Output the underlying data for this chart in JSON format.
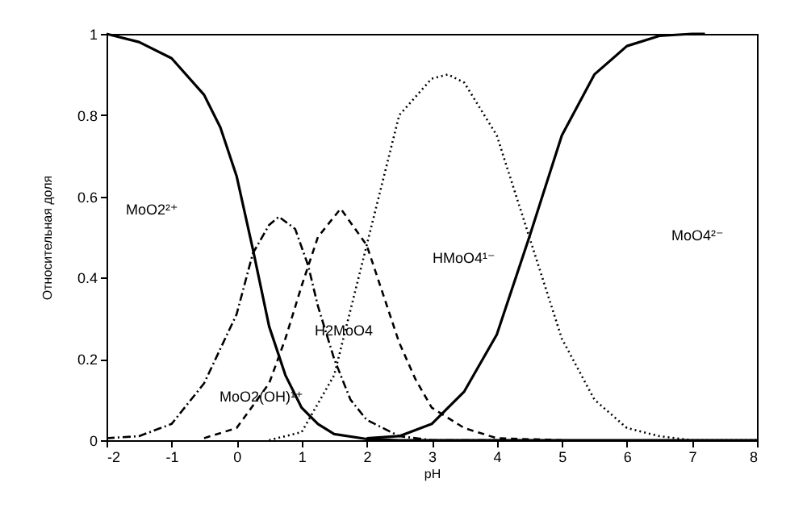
{
  "chart_data": {
    "type": "line",
    "xlabel": "pH",
    "ylabel": "Относительная доля",
    "xlim": [
      -2,
      8
    ],
    "ylim": [
      0,
      1
    ],
    "xticks": [
      -2,
      -1,
      0,
      1,
      2,
      3,
      4,
      5,
      6,
      7,
      8
    ],
    "yticks": [
      0,
      0.2,
      0.4,
      0.6,
      0.8,
      1
    ],
    "grid": false,
    "marker": "none",
    "series": [
      {
        "color": "#000000",
        "line_style": "solid",
        "x": [
          -2,
          -1.5,
          -1,
          -0.5,
          -0.25,
          0,
          0.25,
          0.5,
          0.75,
          1,
          1.25,
          1.5,
          2,
          2.5,
          3,
          4,
          5,
          6,
          7,
          8
        ],
        "values": [
          1,
          0.98,
          0.94,
          0.85,
          0.77,
          0.65,
          0.47,
          0.28,
          0.16,
          0.08,
          0.04,
          0.015,
          0.003,
          0,
          0,
          0,
          0,
          0,
          0,
          0
        ]
      },
      {
        "color": "#000000",
        "line_style": "dashdot",
        "x": [
          -2,
          -1.5,
          -1,
          -0.5,
          0,
          0.25,
          0.5,
          0.65,
          0.9,
          1.1,
          1.25,
          1.5,
          1.75,
          2,
          2.5,
          3,
          4
        ],
        "values": [
          0.005,
          0.01,
          0.04,
          0.14,
          0.31,
          0.46,
          0.53,
          0.55,
          0.52,
          0.43,
          0.33,
          0.2,
          0.1,
          0.05,
          0.01,
          0,
          0
        ]
      },
      {
        "color": "#000000",
        "line_style": "dashed",
        "x": [
          -0.5,
          0,
          0.5,
          0.75,
          1,
          1.25,
          1.6,
          2,
          2.25,
          2.5,
          2.75,
          3,
          3.5,
          4,
          5
        ],
        "values": [
          0.005,
          0.03,
          0.14,
          0.25,
          0.38,
          0.5,
          0.57,
          0.48,
          0.36,
          0.24,
          0.15,
          0.08,
          0.03,
          0.005,
          0
        ]
      },
      {
        "color": "#000000",
        "line_style": "dotted",
        "x": [
          0.5,
          1,
          1.5,
          2,
          2.5,
          3,
          3.25,
          3.5,
          4,
          4.5,
          5,
          5.5,
          6,
          6.5,
          7,
          8
        ],
        "values": [
          0,
          0.02,
          0.16,
          0.48,
          0.8,
          0.89,
          0.9,
          0.88,
          0.75,
          0.5,
          0.25,
          0.1,
          0.03,
          0.01,
          0,
          0
        ]
      },
      {
        "color": "#000000",
        "line_style": "solid",
        "x": [
          2,
          2.5,
          3,
          3.5,
          4,
          4.5,
          5,
          5.5,
          6,
          6.5,
          7,
          7.2
        ],
        "values": [
          0.005,
          0.01,
          0.04,
          0.12,
          0.26,
          0.5,
          0.75,
          0.9,
          0.97,
          0.995,
          1,
          1
        ]
      }
    ],
    "annotations": [
      "MoO2²⁺",
      "MoO2(OH)¹⁺",
      "H2MoO4",
      "HMoO4¹⁻",
      "MoO4²⁻"
    ]
  }
}
